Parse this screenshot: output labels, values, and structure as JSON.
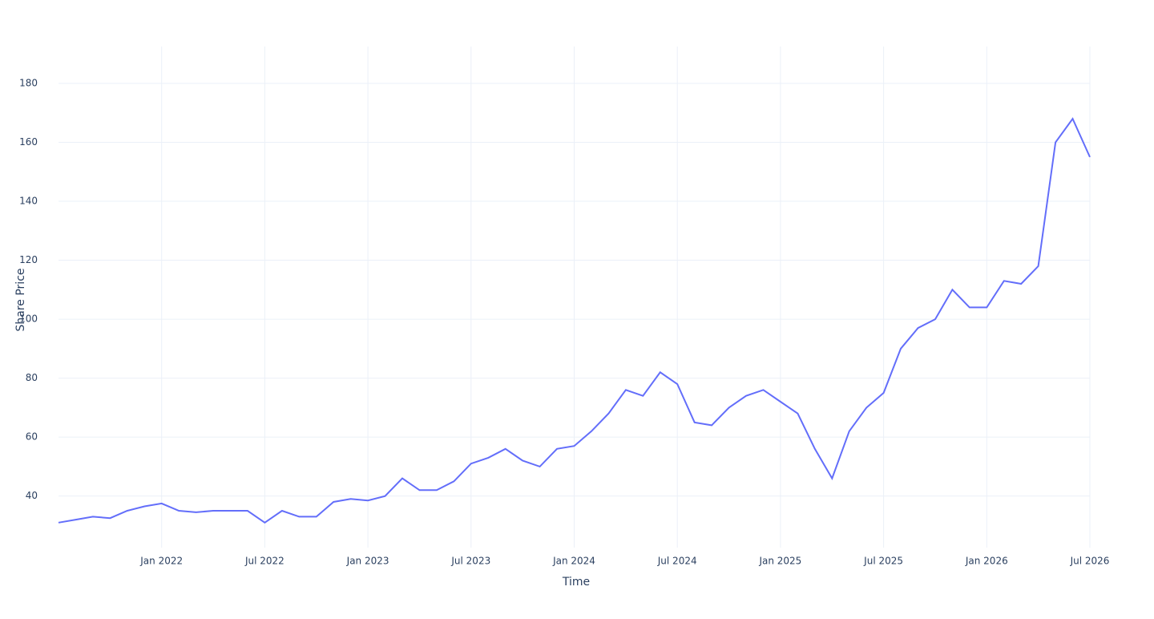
{
  "chart_data": {
    "type": "line",
    "x_label": "Time",
    "y_label": "Share Price",
    "x": [
      "2021-07",
      "2021-08",
      "2021-09",
      "2021-10",
      "2021-11",
      "2021-12",
      "2022-01",
      "2022-02",
      "2022-03",
      "2022-04",
      "2022-05",
      "2022-06",
      "2022-07",
      "2022-08",
      "2022-09",
      "2022-10",
      "2022-11",
      "2022-12",
      "2023-01",
      "2023-02",
      "2023-03",
      "2023-04",
      "2023-05",
      "2023-06",
      "2023-07",
      "2023-08",
      "2023-09",
      "2023-10",
      "2023-11",
      "2023-12",
      "2024-01",
      "2024-02",
      "2024-03",
      "2024-04",
      "2024-05",
      "2024-06",
      "2024-07",
      "2024-08",
      "2024-09",
      "2024-10",
      "2024-11",
      "2024-12",
      "2025-01",
      "2025-02",
      "2025-03",
      "2025-04",
      "2025-05",
      "2025-06",
      "2025-07",
      "2025-08",
      "2025-09",
      "2025-10",
      "2025-11",
      "2025-12",
      "2026-01",
      "2026-02",
      "2026-03",
      "2026-04",
      "2026-05",
      "2026-06",
      "2026-07"
    ],
    "series": [
      {
        "name": "Share Price",
        "color": "#636efa",
        "values": [
          31,
          32,
          33,
          32.5,
          35,
          36.5,
          37.5,
          35,
          34.5,
          35,
          35,
          35,
          31,
          35,
          33,
          33,
          38,
          39,
          38.5,
          40,
          46,
          42,
          42,
          45,
          51,
          53,
          56,
          52,
          50,
          56,
          57,
          62,
          68,
          76,
          74,
          82,
          78,
          65,
          64,
          70,
          74,
          76,
          72,
          68,
          56,
          46,
          62,
          70,
          75,
          90,
          97,
          100,
          110,
          104,
          104,
          113,
          112,
          118,
          160,
          168,
          155
        ]
      }
    ],
    "xlim": [
      "2021-07",
      "2026-07"
    ],
    "xticks": [
      {
        "value": "2022-01",
        "label": "Jan 2022"
      },
      {
        "value": "2022-07",
        "label": "Jul 2022"
      },
      {
        "value": "2023-01",
        "label": "Jan 2023"
      },
      {
        "value": "2023-07",
        "label": "Jul 2023"
      },
      {
        "value": "2024-01",
        "label": "Jan 2024"
      },
      {
        "value": "2024-07",
        "label": "Jul 2024"
      },
      {
        "value": "2025-01",
        "label": "Jan 2025"
      },
      {
        "value": "2025-07",
        "label": "Jul 2025"
      },
      {
        "value": "2026-01",
        "label": "Jan 2026"
      },
      {
        "value": "2026-07",
        "label": "Jul 2026"
      }
    ],
    "ylim": [
      22.5,
      192.5
    ],
    "yticks": [
      40,
      60,
      80,
      100,
      120,
      140,
      160,
      180
    ],
    "grid": true
  }
}
